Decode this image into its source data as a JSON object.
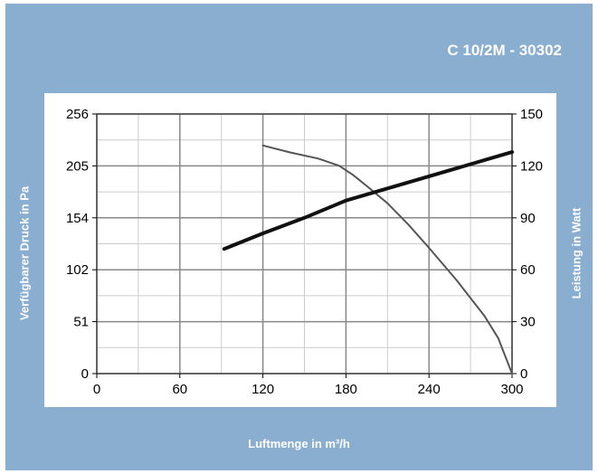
{
  "chart_data": {
    "type": "line",
    "title": "C 10/2M - 30302",
    "xlabel": "Luftmenge in m³/h",
    "ylabel": "Verfügbarer Druck in Pa",
    "y2label": "Leistung in Watt",
    "xlim": [
      0,
      300
    ],
    "ylim": [
      0,
      256
    ],
    "y2lim": [
      0,
      150
    ],
    "x_ticks": [
      "0",
      "60",
      "120",
      "180",
      "240",
      "300"
    ],
    "y_ticks": [
      "0",
      "51",
      "102",
      "154",
      "205",
      "256"
    ],
    "y2_ticks": [
      "0",
      "30",
      "60",
      "90",
      "120",
      "150"
    ],
    "grid": true,
    "series": [
      {
        "axis": "left",
        "color": "#555555",
        "x": [
          120,
          140,
          160,
          175,
          185,
          195,
          210,
          225,
          240,
          260,
          280,
          290,
          300
        ],
        "y": [
          225,
          218,
          212,
          205,
          196,
          185,
          168,
          147,
          124,
          92,
          57,
          35,
          0
        ]
      },
      {
        "axis": "right",
        "color": "#111111",
        "x": [
          92,
          120,
          150,
          180,
          210,
          240,
          270,
          300
        ],
        "y": [
          72,
          81,
          90,
          100,
          107,
          114,
          121,
          128
        ]
      }
    ]
  }
}
